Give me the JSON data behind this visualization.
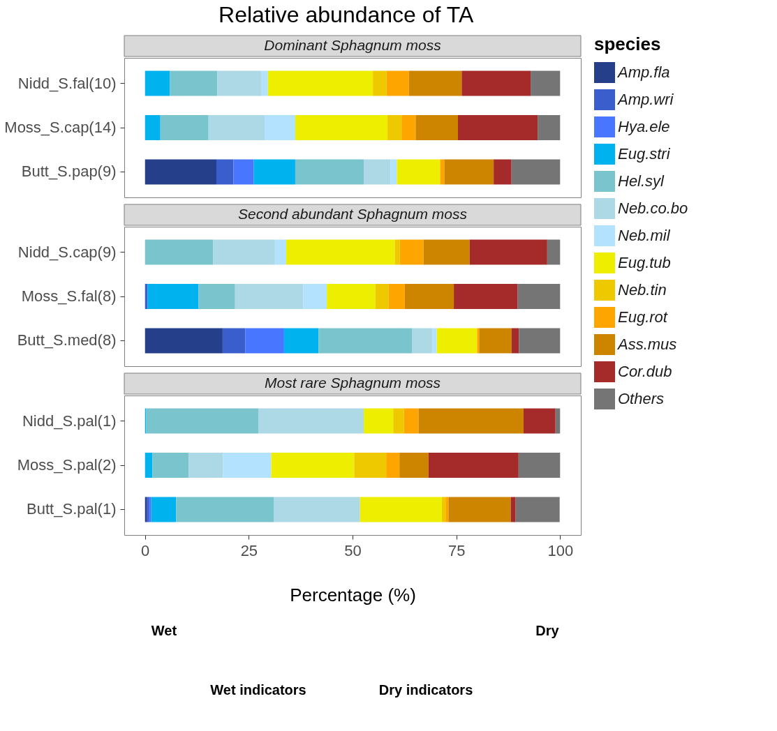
{
  "chart_data": [
    {
      "type": "bar",
      "title": "Relative abundance of TA",
      "subtitle": "Dominant Sphagnum moss",
      "legend_title": "species",
      "legend": "right",
      "stacked": true,
      "orientation": "horizontal",
      "xlim": [
        -5,
        105
      ],
      "xticks": [
        0,
        25,
        50,
        75,
        100
      ],
      "tick_labels": "y",
      "categories": [
        "Nidd_S.fal(10)",
        "Moss_S.cap(14)",
        "Butt_S.pap(9)"
      ],
      "series": [
        {
          "name": "Amp.fla",
          "color": "#253f8b",
          "values": [
            0,
            0,
            17.2
          ]
        },
        {
          "name": "Amp.wri",
          "color": "#3a5fcd",
          "values": [
            0,
            0,
            4.1
          ]
        },
        {
          "name": "Hya.ele",
          "color": "#4876ff",
          "values": [
            0,
            0,
            4.9
          ]
        },
        {
          "name": "Eug.stri",
          "color": "#00b2ee",
          "values": [
            6.0,
            3.7,
            10.0
          ]
        },
        {
          "name": "Hel.syl",
          "color": "#7ac5cd",
          "values": [
            11.4,
            11.6,
            16.5
          ]
        },
        {
          "name": "Neb.co.bo",
          "color": "#add8e6",
          "values": [
            10.7,
            13.5,
            6.4
          ]
        },
        {
          "name": "Neb.mil",
          "color": "#b2e2fd",
          "values": [
            1.5,
            7.4,
            1.6
          ]
        },
        {
          "name": "Eug.tub",
          "color": "#eeee00",
          "values": [
            25.3,
            22.2,
            10.4
          ]
        },
        {
          "name": "Neb.tin",
          "color": "#eec900",
          "values": [
            3.3,
            3.4,
            0
          ]
        },
        {
          "name": "Eug.rot",
          "color": "#ffa500",
          "values": [
            5.4,
            3.4,
            1.0
          ]
        },
        {
          "name": "Ass.mus",
          "color": "#cd8500",
          "values": [
            12.7,
            10.2,
            11.9
          ]
        },
        {
          "name": "Cor.dub",
          "color": "#a52a2a",
          "values": [
            16.6,
            19.2,
            4.3
          ]
        },
        {
          "name": "Others",
          "color": "#757575",
          "values": [
            7.1,
            5.4,
            11.7
          ]
        }
      ]
    },
    {
      "type": "bar",
      "subtitle": "Second abundant Sphagnum moss",
      "legend": false,
      "stacked": true,
      "orientation": "horizontal",
      "xlim": [
        -5,
        105
      ],
      "xticks": [
        0,
        25,
        50,
        75,
        100
      ],
      "tick_labels": "y",
      "categories": [
        "Nidd_S.cap(9)",
        "Moss_S.fal(8)",
        "Butt_S.med(8)"
      ],
      "series": [
        {
          "name": "Amp.fla",
          "color": "#253f8b",
          "values": [
            0,
            0,
            18.7
          ]
        },
        {
          "name": "Amp.wri",
          "color": "#3a5fcd",
          "values": [
            0,
            0.6,
            5.5
          ]
        },
        {
          "name": "Hya.ele",
          "color": "#4876ff",
          "values": [
            0,
            0,
            9.3
          ]
        },
        {
          "name": "Eug.stri",
          "color": "#00b2ee",
          "values": [
            0,
            12.3,
            8.3
          ]
        },
        {
          "name": "Hel.syl",
          "color": "#7ac5cd",
          "values": [
            16.4,
            8.8,
            22.6
          ]
        },
        {
          "name": "Neb.co.bo",
          "color": "#add8e6",
          "values": [
            14.9,
            16.4,
            4.8
          ]
        },
        {
          "name": "Neb.mil",
          "color": "#b2e2fd",
          "values": [
            2.7,
            5.7,
            1.1
          ]
        },
        {
          "name": "Eug.tub",
          "color": "#eeee00",
          "values": [
            26.2,
            11.7,
            9.7
          ]
        },
        {
          "name": "Neb.tin",
          "color": "#eec900",
          "values": [
            1.2,
            3.2,
            0
          ]
        },
        {
          "name": "Eug.rot",
          "color": "#ffa500",
          "values": [
            5.7,
            3.9,
            0.5
          ]
        },
        {
          "name": "Ass.mus",
          "color": "#cd8500",
          "values": [
            11.1,
            11.8,
            7.8
          ]
        },
        {
          "name": "Cor.dub",
          "color": "#a52a2a",
          "values": [
            18.7,
            15.4,
            1.8
          ]
        },
        {
          "name": "Others",
          "color": "#757575",
          "values": [
            3.1,
            10.2,
            9.9
          ]
        }
      ]
    },
    {
      "type": "bar",
      "subtitle": "Most rare Sphagnum moss",
      "xlabel": "Percentage (%)",
      "legend": false,
      "stacked": true,
      "orientation": "horizontal",
      "xlim": [
        -5,
        105
      ],
      "xticks": [
        0,
        25,
        50,
        75,
        100
      ],
      "categories": [
        "Nidd_S.pal(1)",
        "Moss_S.pal(2)",
        "Butt_S.pal(1)"
      ],
      "series": [
        {
          "name": "Amp.fla",
          "color": "#253f8b",
          "values": [
            0,
            0,
            0.5
          ]
        },
        {
          "name": "Amp.wri",
          "color": "#3a5fcd",
          "values": [
            0,
            0,
            0.4
          ]
        },
        {
          "name": "Hya.ele",
          "color": "#4876ff",
          "values": [
            0,
            0,
            0.6
          ]
        },
        {
          "name": "Eug.stri",
          "color": "#00b2ee",
          "values": [
            0.3,
            1.8,
            6.0
          ]
        },
        {
          "name": "Hel.syl",
          "color": "#7ac5cd",
          "values": [
            27.0,
            8.7,
            23.5
          ]
        },
        {
          "name": "Neb.co.bo",
          "color": "#add8e6",
          "values": [
            25.4,
            8.3,
            20.8
          ]
        },
        {
          "name": "Neb.mil",
          "color": "#b2e2fd",
          "values": [
            0,
            11.6,
            null
          ]
        },
        {
          "name": "Eug.tub",
          "color": "#eeee00",
          "values": [
            7.1,
            20.0,
            19.7
          ]
        },
        {
          "name": "Neb.tin",
          "color": "#eec900",
          "values": [
            2.6,
            7.7,
            0.9
          ]
        },
        {
          "name": "Eug.rot",
          "color": "#ffa500",
          "values": [
            3.5,
            3.2,
            0.7
          ]
        },
        {
          "name": "Ass.mus",
          "color": "#cd8500",
          "values": [
            25.3,
            7.0,
            15.0
          ]
        },
        {
          "name": "Cor.dub",
          "color": "#a52a2a",
          "values": [
            7.7,
            21.7,
            1.2
          ]
        },
        {
          "name": "Others",
          "color": "#757575",
          "values": [
            1.1,
            10.0,
            10.6
          ]
        }
      ]
    },
    {
      "type": "other",
      "annotations": [
        "Wet",
        "Dry",
        "Wet indicators",
        "Dry indicators"
      ]
    }
  ]
}
